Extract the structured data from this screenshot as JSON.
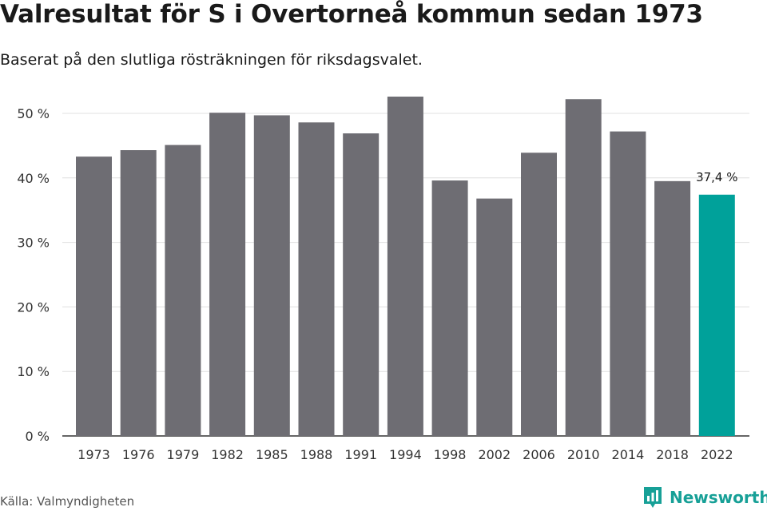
{
  "header": {
    "title": "Valresultat för S i Overtorneå kommun sedan 1973",
    "subtitle": "Baserat på den slutliga rösträkningen för riksdagsvalet."
  },
  "footer": {
    "source": "Källa: Valmyndigheten",
    "brand": "Newsworthy"
  },
  "colors": {
    "bar": "#6e6d73",
    "highlight": "#00a19a",
    "grid": "#e0e0e0",
    "axis": "#333333",
    "brand": "#17a097"
  },
  "chart_data": {
    "type": "bar",
    "categories": [
      "1973",
      "1976",
      "1979",
      "1982",
      "1985",
      "1988",
      "1991",
      "1994",
      "1998",
      "2002",
      "2006",
      "2010",
      "2014",
      "2018",
      "2022"
    ],
    "series": [
      {
        "values": [
          43.3,
          44.3,
          45.1,
          50.1,
          49.7,
          48.6,
          46.9,
          52.6,
          39.6,
          36.8,
          43.9,
          52.2,
          47.2,
          39.5,
          37.4
        ]
      }
    ],
    "ylim": [
      0,
      50
    ],
    "yticks": [
      0,
      10,
      20,
      30,
      40,
      50
    ],
    "ytick_labels": [
      "0 %",
      "10 %",
      "20 %",
      "30 %",
      "40 %",
      "50 %"
    ],
    "highlight_index": 14,
    "data_labels": [
      {
        "index": 14,
        "text": "37,4 %"
      }
    ],
    "grid": true,
    "legend": false
  }
}
